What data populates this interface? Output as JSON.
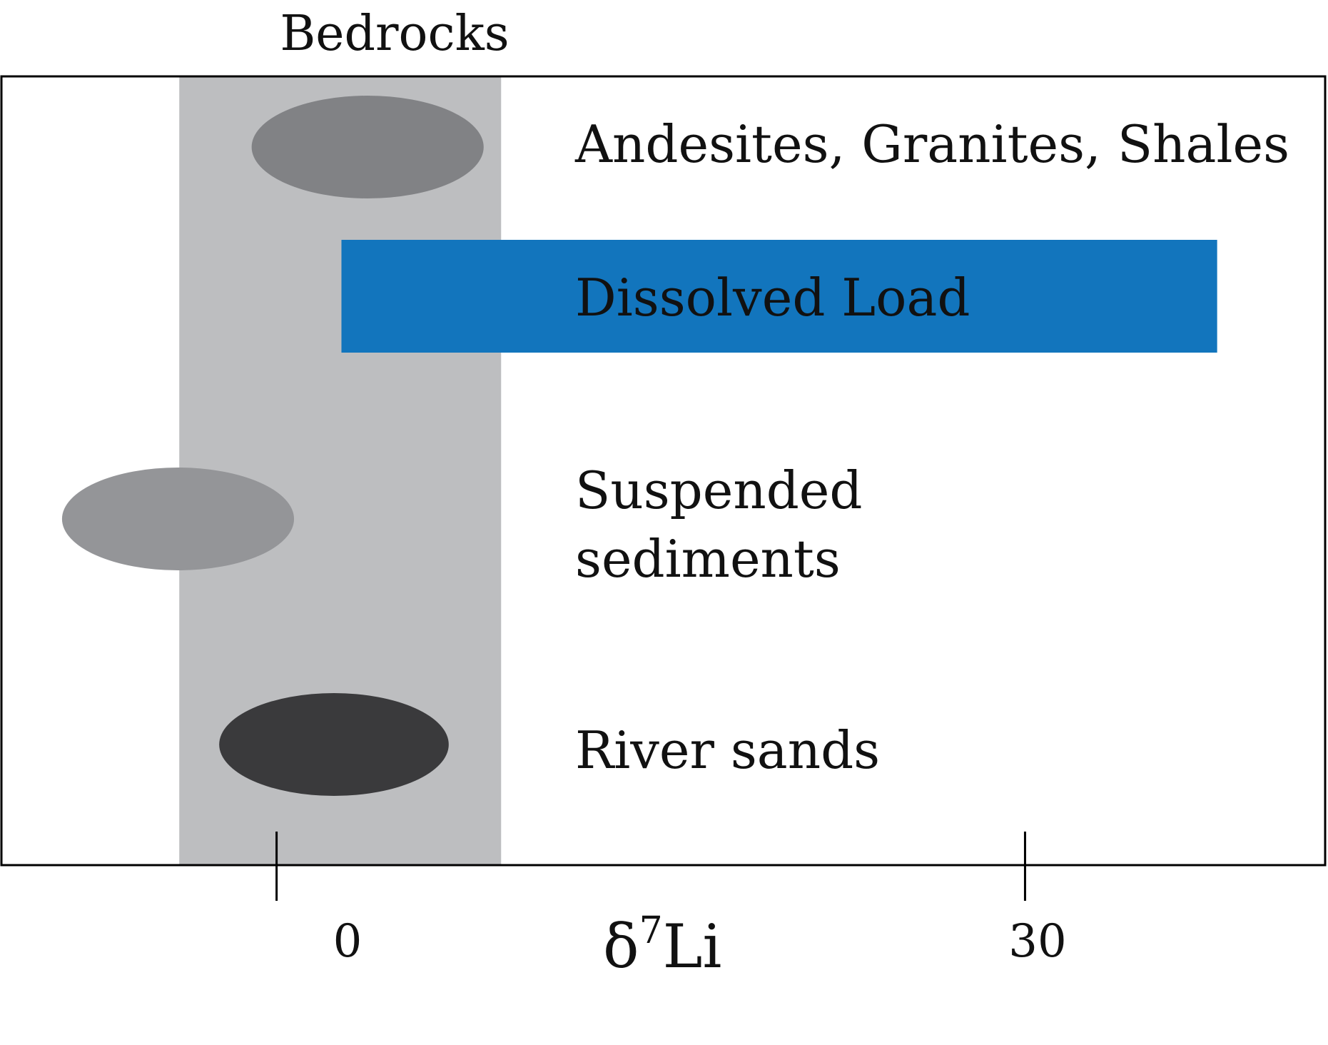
{
  "chart_data": {
    "type": "range",
    "title": "Bedrocks",
    "xlabel_symbol": "δ",
    "xlabel_superscript": "7",
    "xlabel_element": "Li",
    "xlim": [
      -11,
      42
    ],
    "x_ticks": [
      0,
      30
    ],
    "x_tick_labels": [
      "0",
      "30"
    ],
    "bedrock_band": {
      "x_min": -3.9,
      "x_max": 9,
      "label": "Bedrocks"
    },
    "entries": [
      {
        "name": "Andesites, Granites, Shales",
        "shape": "ellipse",
        "x_min": -1,
        "x_max": 8.3,
        "color": "#818285"
      },
      {
        "name": "Dissolved Load",
        "shape": "bar",
        "x_min": 2.6,
        "x_max": 37.7,
        "color": "#1275BD"
      },
      {
        "name": "Suspended sediments",
        "name_lines": [
          "Suspended",
          "sediments"
        ],
        "shape": "ellipse",
        "x_min": -8.6,
        "x_max": 0.7,
        "color": "#949598"
      },
      {
        "name": "River sands",
        "shape": "ellipse",
        "x_min": -2.3,
        "x_max": 6.9,
        "color": "#3A3A3C"
      }
    ]
  }
}
